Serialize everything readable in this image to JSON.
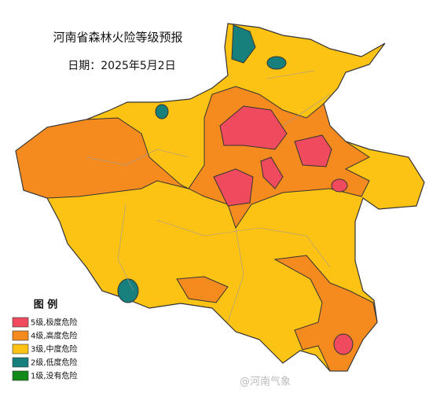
{
  "header": {
    "title": "河南省森林火险等级预报",
    "date": "日期：2025年5月2日"
  },
  "legend": {
    "title": "图  例",
    "items": [
      {
        "label": "5级,极度危险",
        "color": "#ef4a5e"
      },
      {
        "label": "4级,高度危险",
        "color": "#f58a1f"
      },
      {
        "label": "3级,中度危险",
        "color": "#fdc314"
      },
      {
        "label": "2级,低度危险",
        "color": "#18807c"
      },
      {
        "label": "1级,没有危险",
        "color": "#13891a"
      }
    ]
  },
  "watermark": "@河南气象"
}
